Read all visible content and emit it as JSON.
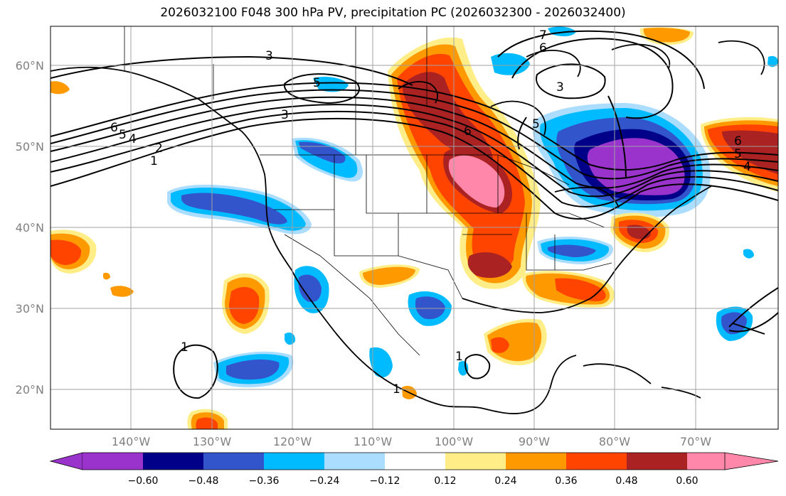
{
  "title": "2026032100 F048 300 hPa PV, precipitation PC (2026032300 - 2026032400)",
  "lat_labels": [
    "60°N",
    "50°N",
    "40°N",
    "30°N",
    "20°N"
  ],
  "lon_labels": [
    "140°W",
    "130°W",
    "120°W",
    "110°W",
    "100°W",
    "90°W",
    "80°W",
    "70°W"
  ],
  "colorbar": {
    "colors": [
      "#9933cc",
      "#000088",
      "#3355cc",
      "#00bbff",
      "#aaddff",
      "#ffffff",
      "#ffee88",
      "#ff9900",
      "#ff4400",
      "#aa2222",
      "#ff88aa"
    ],
    "tick_labels": [
      "−0.60",
      "−0.48",
      "−0.36",
      "−0.24",
      "−0.12",
      "0.12",
      "0.24",
      "0.36",
      "0.48",
      "0.60"
    ]
  },
  "contour_labels": [
    "3",
    "3",
    "6",
    "7",
    "5",
    "3",
    "6",
    "5",
    "4",
    "2",
    "1",
    "6",
    "5",
    "1",
    "1",
    "1",
    "5",
    "6",
    "4"
  ],
  "gridline_color": "#a0a0a0"
}
